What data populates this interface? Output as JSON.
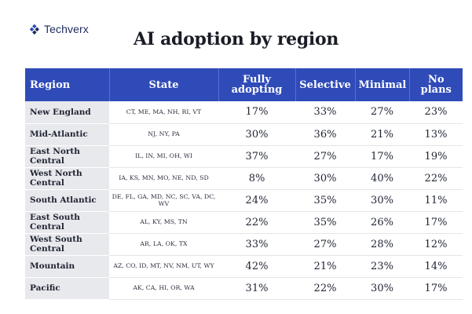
{
  "brand": {
    "name": "Techverx",
    "icon": "techverx-logo-icon",
    "color": "#1c2a5e"
  },
  "title": "AI adoption by region",
  "colors": {
    "header_bg": "#2f4bb8",
    "header_text": "#ffffff",
    "region_bg": "#e8e9ec"
  },
  "headers": {
    "region": "Region",
    "state": "State",
    "fully": "Fully adopting",
    "selective": "Selective",
    "minimal": "Minimal",
    "none": "No plans"
  },
  "rows": [
    {
      "region": "New England",
      "state": "CT, ME, MA, NH, RI, VT",
      "fully": "17%",
      "selective": "33%",
      "minimal": "27%",
      "none": "23%"
    },
    {
      "region": "Mid-Atlantic",
      "state": "NJ, NY, PA",
      "fully": "30%",
      "selective": "36%",
      "minimal": "21%",
      "none": "13%"
    },
    {
      "region": "East North Central",
      "state": "IL, IN, MI, OH, WI",
      "fully": "37%",
      "selective": "27%",
      "minimal": "17%",
      "none": "19%"
    },
    {
      "region": "West North Central",
      "state": "IA, KS, MN, MO, NE, ND, SD",
      "fully": "8%",
      "selective": "30%",
      "minimal": "40%",
      "none": "22%"
    },
    {
      "region": "South Atlantic",
      "state": "DE, FL, GA, MD, NC, SC, VA, DC, WV",
      "fully": "24%",
      "selective": "35%",
      "minimal": "30%",
      "none": "11%"
    },
    {
      "region": "East South Central",
      "state": "AL, KY, MS, TN",
      "fully": "22%",
      "selective": "35%",
      "minimal": "26%",
      "none": "17%"
    },
    {
      "region": "West South Central",
      "state": "AR, LA, OK, TX",
      "fully": "33%",
      "selective": "27%",
      "minimal": "28%",
      "none": "12%"
    },
    {
      "region": "Mountain",
      "state": "AZ, CO, ID, MT, NV, NM, UT, WY",
      "fully": "42%",
      "selective": "21%",
      "minimal": "23%",
      "none": "14%"
    },
    {
      "region": "Pacific",
      "state": "AK, CA, HI, OR, WA",
      "fully": "31%",
      "selective": "22%",
      "minimal": "30%",
      "none": "17%"
    }
  ]
}
